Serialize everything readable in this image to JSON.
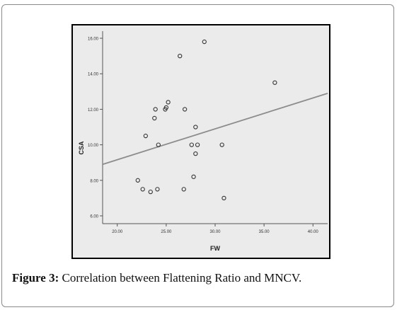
{
  "caption": {
    "label": "Figure 3:",
    "text": " Correlation between Flattening Ratio and MNCV."
  },
  "chart_data": {
    "type": "scatter",
    "xlabel": "FW",
    "ylabel": "CSA",
    "xlim": [
      18.5,
      41.5
    ],
    "ylim": [
      5.8,
      16.4
    ],
    "x_ticks": [
      20,
      25,
      30,
      35,
      40
    ],
    "x_tick_labels": [
      "20.00",
      "25.00",
      "30.00",
      "35.00",
      "40.00"
    ],
    "y_ticks": [
      6,
      8,
      10,
      12,
      14,
      16
    ],
    "y_tick_labels": [
      "6.00",
      "8.00",
      "10.00",
      "12.00",
      "14.00",
      "16.00"
    ],
    "grid": false,
    "points": [
      {
        "x": 22.1,
        "y": 8.0
      },
      {
        "x": 22.6,
        "y": 7.5
      },
      {
        "x": 22.9,
        "y": 10.5
      },
      {
        "x": 23.4,
        "y": 7.35
      },
      {
        "x": 23.8,
        "y": 11.5
      },
      {
        "x": 23.9,
        "y": 12.0
      },
      {
        "x": 24.1,
        "y": 7.5
      },
      {
        "x": 24.2,
        "y": 10.0
      },
      {
        "x": 24.9,
        "y": 12.0
      },
      {
        "x": 25.0,
        "y": 12.1
      },
      {
        "x": 25.2,
        "y": 12.4
      },
      {
        "x": 26.4,
        "y": 15.0
      },
      {
        "x": 26.8,
        "y": 7.5
      },
      {
        "x": 26.9,
        "y": 12.0
      },
      {
        "x": 27.6,
        "y": 10.0
      },
      {
        "x": 27.8,
        "y": 8.2
      },
      {
        "x": 28.0,
        "y": 11.0
      },
      {
        "x": 28.0,
        "y": 9.5
      },
      {
        "x": 28.2,
        "y": 10.0
      },
      {
        "x": 28.9,
        "y": 15.8
      },
      {
        "x": 30.7,
        "y": 10.0
      },
      {
        "x": 30.9,
        "y": 7.0
      },
      {
        "x": 36.1,
        "y": 13.5
      }
    ],
    "fit_line": {
      "x": [
        18.5,
        41.5
      ],
      "y": [
        8.9,
        12.9
      ]
    },
    "colors": {
      "background": "#ebebeb",
      "marker": "#333333",
      "fit_line": "#8c8c8c",
      "frame": "#000000"
    }
  }
}
